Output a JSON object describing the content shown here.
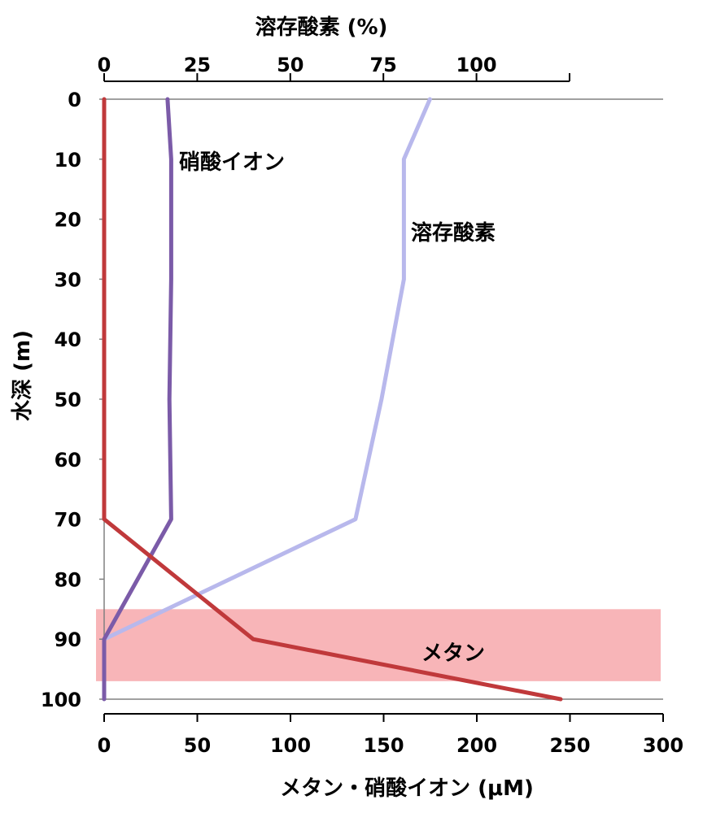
{
  "chart_data": {
    "type": "line",
    "orientation": "depth-profile",
    "title": "",
    "ylabel": "水深 (m)",
    "y_ticks": [
      0,
      10,
      20,
      30,
      40,
      50,
      60,
      70,
      80,
      90,
      100
    ],
    "ylim": [
      0,
      100
    ],
    "y_inverted": true,
    "x_bottom": {
      "label": "メタン・硝酸イオン (μM)",
      "ticks": [
        0,
        50,
        100,
        150,
        200,
        250,
        300
      ],
      "lim": [
        0,
        300
      ]
    },
    "x_top": {
      "label": "溶存酸素 (%)",
      "ticks": [
        0,
        25,
        50,
        75,
        100
      ],
      "lim": [
        0,
        125
      ]
    },
    "highlight_band": {
      "y_from": 85,
      "y_to": 97,
      "color": "#f7a8ab"
    },
    "series": [
      {
        "name": "メタン",
        "axis": "bottom",
        "color": "#c0393b",
        "points": [
          [
            0,
            0
          ],
          [
            0,
            70
          ],
          [
            80,
            90
          ],
          [
            245,
            100
          ]
        ]
      },
      {
        "name": "硝酸イオン",
        "axis": "bottom",
        "color": "#7b5ba8",
        "points": [
          [
            34,
            0
          ],
          [
            36,
            10
          ],
          [
            36,
            30
          ],
          [
            35,
            50
          ],
          [
            36,
            70
          ],
          [
            0,
            90
          ],
          [
            0,
            100
          ]
        ]
      },
      {
        "name": "溶存酸素",
        "axis": "top",
        "color": "#b8b8ec",
        "points": [
          [
            87.5,
            0
          ],
          [
            80.5,
            10
          ],
          [
            80.5,
            30
          ],
          [
            74.5,
            50
          ],
          [
            67.5,
            70
          ],
          [
            0,
            90
          ]
        ]
      }
    ]
  }
}
